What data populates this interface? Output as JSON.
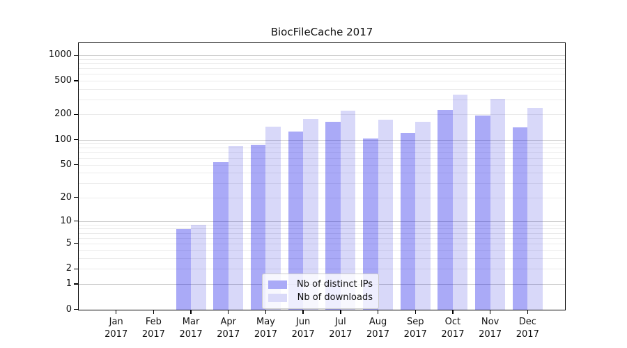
{
  "title": "BiocFileCache 2017",
  "legend": {
    "items": [
      {
        "label": "Nb of distinct IPs",
        "color": "#aaaaf7"
      },
      {
        "label": "Nb of downloads",
        "color": "#dadaf9"
      }
    ]
  },
  "chart_data": {
    "type": "bar",
    "title": "BiocFileCache 2017",
    "months": [
      "Jan",
      "Feb",
      "Mar",
      "Apr",
      "May",
      "Jun",
      "Jul",
      "Aug",
      "Sep",
      "Oct",
      "Nov",
      "Dec"
    ],
    "year": "2017",
    "categories": [
      "Jan 2017",
      "Feb 2017",
      "Mar 2017",
      "Apr 2017",
      "May 2017",
      "Jun 2017",
      "Jul 2017",
      "Aug 2017",
      "Sep 2017",
      "Oct 2017",
      "Nov 2017",
      "Dec 2017"
    ],
    "series": [
      {
        "name": "Nb of distinct IPs",
        "color": "#aaaaf7",
        "values": [
          0,
          0,
          8,
          54,
          88,
          126,
          165,
          104,
          122,
          226,
          196,
          142
        ]
      },
      {
        "name": "Nb of downloads",
        "color": "#dadaf9",
        "values": [
          0,
          0,
          9,
          84,
          143,
          177,
          224,
          173,
          165,
          342,
          309,
          240
        ]
      }
    ],
    "y_axis": {
      "scale": "log10(value+1)",
      "tick_values": [
        0,
        1,
        2,
        5,
        10,
        20,
        50,
        100,
        200,
        500,
        1000
      ],
      "major_grid_values": [
        1,
        10,
        100,
        1000
      ],
      "minor_grid_decades": [
        1,
        10,
        100
      ],
      "range": [
        0,
        1390
      ],
      "grid": true
    },
    "legend_position": "lower-center"
  },
  "colors": {
    "bar_distinct_ips": "#aaaaf7",
    "bar_downloads": "#dadaf9",
    "grid_major": "#c4c4c4",
    "grid_minor": "#ebebeb",
    "axis": "#000000",
    "text": "#111111"
  }
}
